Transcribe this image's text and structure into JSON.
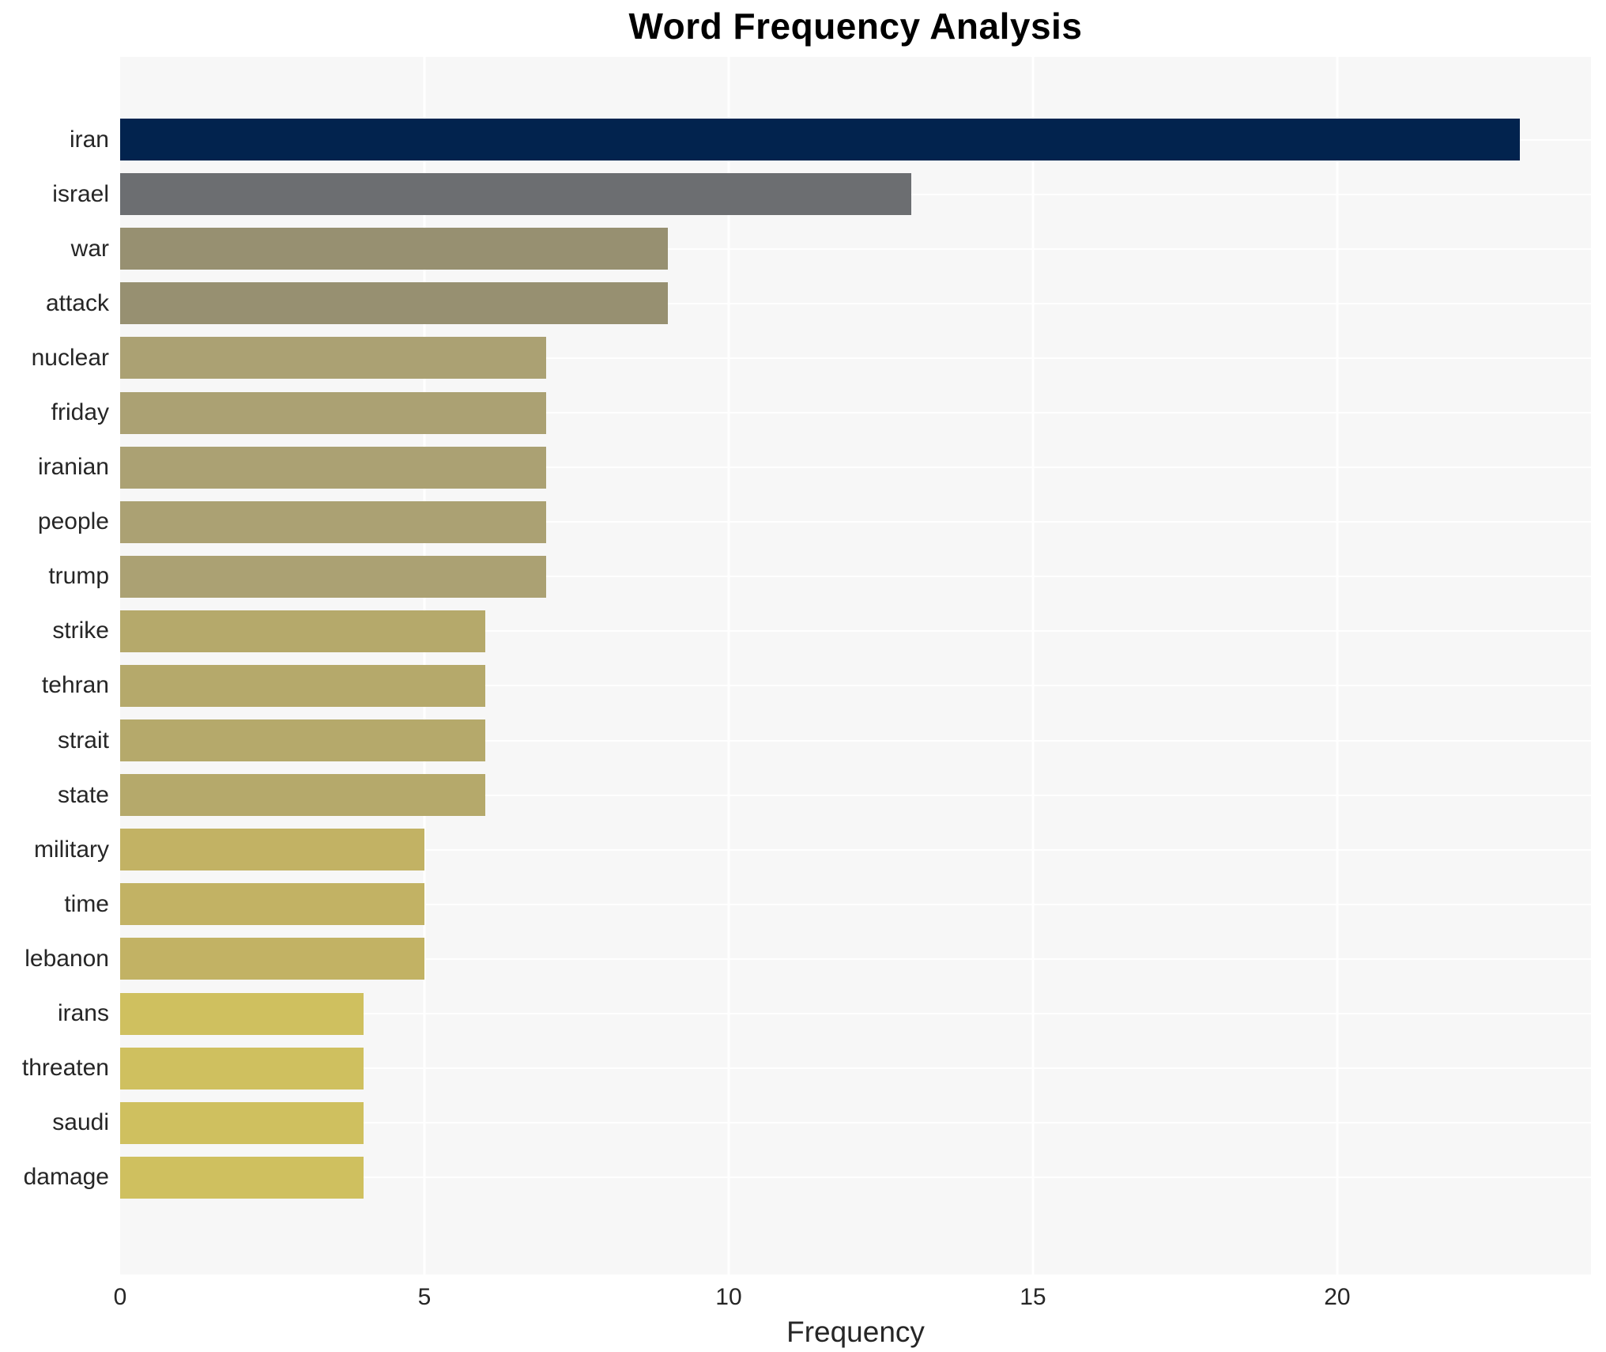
{
  "title": "Word Frequency Analysis",
  "chart_data": {
    "type": "bar",
    "orientation": "horizontal",
    "title": "Word Frequency Analysis",
    "xlabel": "Frequency",
    "ylabel": "",
    "categories": [
      "iran",
      "israel",
      "war",
      "attack",
      "nuclear",
      "friday",
      "iranian",
      "people",
      "trump",
      "strike",
      "tehran",
      "strait",
      "state",
      "military",
      "time",
      "lebanon",
      "irans",
      "threaten",
      "saudi",
      "damage"
    ],
    "values": [
      23,
      13,
      9,
      9,
      7,
      7,
      7,
      7,
      7,
      6,
      6,
      6,
      6,
      5,
      5,
      5,
      4,
      4,
      4,
      4
    ],
    "bar_colors": [
      "#02234e",
      "#6c6e71",
      "#979071",
      "#979071",
      "#aba173",
      "#aba173",
      "#aba173",
      "#aba173",
      "#aba173",
      "#b5a96b",
      "#b5a96b",
      "#b5a96b",
      "#b5a96b",
      "#c2b264",
      "#c2b264",
      "#c2b264",
      "#cfc05f",
      "#cfc05f",
      "#cfc05f",
      "#cfc05f"
    ],
    "xlim": [
      0,
      24.17
    ],
    "xticks": [
      0,
      5,
      10,
      15,
      20
    ],
    "grid": true,
    "legend": false,
    "plot_bg_color": "#f7f7f7",
    "grid_color": "#ffffff",
    "text_color": "#262626"
  }
}
